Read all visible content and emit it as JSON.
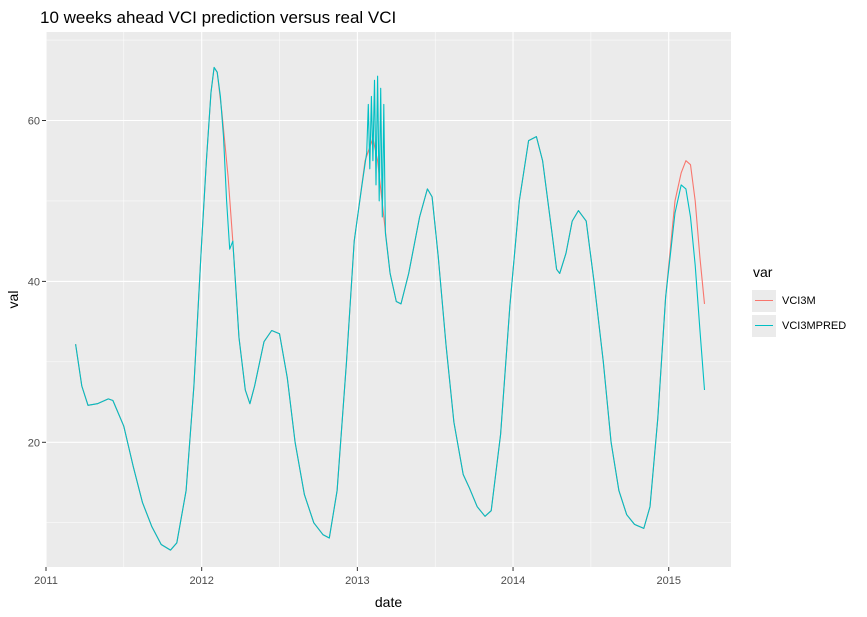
{
  "chart_data": {
    "type": "line",
    "title": "10 weeks ahead VCI prediction versus real VCI",
    "xlabel": "date",
    "ylabel": "val",
    "xlim": [
      2011.0,
      2015.4
    ],
    "ylim": [
      4.5,
      71
    ],
    "x_ticks": [
      {
        "v": 2011,
        "label": "2011"
      },
      {
        "v": 2012,
        "label": "2012"
      },
      {
        "v": 2013,
        "label": "2013"
      },
      {
        "v": 2014,
        "label": "2014"
      },
      {
        "v": 2015,
        "label": "2015"
      }
    ],
    "y_ticks": [
      {
        "v": 20,
        "label": "20"
      },
      {
        "v": 40,
        "label": "40"
      },
      {
        "v": 60,
        "label": "60"
      }
    ],
    "grid": true,
    "legend": {
      "title": "var",
      "position": "right"
    },
    "series": [
      {
        "name": "VCI3M",
        "color": "#F8766D",
        "points": [
          [
            2011.19,
            32.2
          ],
          [
            2011.23,
            27.0
          ],
          [
            2011.27,
            24.6
          ],
          [
            2011.33,
            24.8
          ],
          [
            2011.4,
            25.4
          ],
          [
            2011.43,
            25.2
          ],
          [
            2011.5,
            22.0
          ],
          [
            2011.56,
            17.0
          ],
          [
            2011.62,
            12.5
          ],
          [
            2011.68,
            9.5
          ],
          [
            2011.74,
            7.3
          ],
          [
            2011.8,
            6.6
          ],
          [
            2011.84,
            7.5
          ],
          [
            2011.9,
            14.0
          ],
          [
            2011.95,
            27.0
          ],
          [
            2012.0,
            45.0
          ],
          [
            2012.03,
            55.0
          ],
          [
            2012.06,
            63.5
          ],
          [
            2012.08,
            66.6
          ],
          [
            2012.1,
            66.0
          ],
          [
            2012.13,
            61.0
          ],
          [
            2012.17,
            53.0
          ],
          [
            2012.2,
            45.0
          ],
          [
            2012.24,
            33.0
          ],
          [
            2012.28,
            26.5
          ],
          [
            2012.31,
            24.8
          ],
          [
            2012.34,
            27.0
          ],
          [
            2012.4,
            32.5
          ],
          [
            2012.45,
            33.9
          ],
          [
            2012.5,
            33.5
          ],
          [
            2012.55,
            28.0
          ],
          [
            2012.6,
            20.0
          ],
          [
            2012.66,
            13.5
          ],
          [
            2012.72,
            10.0
          ],
          [
            2012.78,
            8.5
          ],
          [
            2012.82,
            8.1
          ],
          [
            2012.87,
            14.0
          ],
          [
            2012.93,
            30.0
          ],
          [
            2012.98,
            45.0
          ],
          [
            2013.05,
            55.0
          ],
          [
            2013.1,
            57.8
          ],
          [
            2013.13,
            55.0
          ],
          [
            2013.17,
            48.0
          ],
          [
            2013.21,
            41.0
          ],
          [
            2013.25,
            37.5
          ],
          [
            2013.28,
            37.2
          ],
          [
            2013.33,
            41.0
          ],
          [
            2013.4,
            48.0
          ],
          [
            2013.45,
            51.5
          ],
          [
            2013.48,
            50.5
          ],
          [
            2013.52,
            43.0
          ],
          [
            2013.57,
            32.0
          ],
          [
            2013.62,
            22.5
          ],
          [
            2013.68,
            16.0
          ],
          [
            2013.72,
            14.3
          ],
          [
            2013.77,
            12.0
          ],
          [
            2013.82,
            10.8
          ],
          [
            2013.86,
            11.5
          ],
          [
            2013.92,
            21.0
          ],
          [
            2013.98,
            37.0
          ],
          [
            2014.04,
            50.0
          ],
          [
            2014.1,
            57.5
          ],
          [
            2014.15,
            58.0
          ],
          [
            2014.19,
            55.0
          ],
          [
            2014.25,
            46.0
          ],
          [
            2014.28,
            41.5
          ],
          [
            2014.3,
            41.0
          ],
          [
            2014.34,
            43.5
          ],
          [
            2014.38,
            47.5
          ],
          [
            2014.42,
            48.8
          ],
          [
            2014.47,
            47.5
          ],
          [
            2014.52,
            40.0
          ],
          [
            2014.58,
            30.0
          ],
          [
            2014.63,
            20.0
          ],
          [
            2014.68,
            14.0
          ],
          [
            2014.73,
            11.0
          ],
          [
            2014.78,
            9.8
          ],
          [
            2014.84,
            9.3
          ],
          [
            2014.88,
            12.0
          ],
          [
            2014.93,
            23.0
          ],
          [
            2014.98,
            38.0
          ],
          [
            2015.04,
            50.0
          ],
          [
            2015.08,
            53.5
          ],
          [
            2015.11,
            55.0
          ],
          [
            2015.14,
            54.5
          ],
          [
            2015.17,
            50.0
          ],
          [
            2015.2,
            43.0
          ],
          [
            2015.23,
            37.2
          ]
        ]
      },
      {
        "name": "VCI3MPRED",
        "color": "#00BFC4",
        "points": [
          [
            2011.19,
            32.2
          ],
          [
            2011.23,
            27.0
          ],
          [
            2011.27,
            24.6
          ],
          [
            2011.33,
            24.8
          ],
          [
            2011.4,
            25.4
          ],
          [
            2011.43,
            25.2
          ],
          [
            2011.5,
            22.0
          ],
          [
            2011.56,
            17.0
          ],
          [
            2011.62,
            12.5
          ],
          [
            2011.68,
            9.5
          ],
          [
            2011.74,
            7.3
          ],
          [
            2011.8,
            6.6
          ],
          [
            2011.84,
            7.5
          ],
          [
            2011.9,
            14.0
          ],
          [
            2011.95,
            27.0
          ],
          [
            2012.0,
            45.0
          ],
          [
            2012.03,
            55.0
          ],
          [
            2012.06,
            63.5
          ],
          [
            2012.08,
            66.6
          ],
          [
            2012.1,
            66.0
          ],
          [
            2012.12,
            63.0
          ],
          [
            2012.14,
            58.0
          ],
          [
            2012.16,
            50.0
          ],
          [
            2012.18,
            44.0
          ],
          [
            2012.2,
            45.0
          ],
          [
            2012.24,
            33.0
          ],
          [
            2012.28,
            26.5
          ],
          [
            2012.31,
            24.8
          ],
          [
            2012.34,
            27.0
          ],
          [
            2012.4,
            32.5
          ],
          [
            2012.45,
            33.9
          ],
          [
            2012.5,
            33.5
          ],
          [
            2012.55,
            28.0
          ],
          [
            2012.6,
            20.0
          ],
          [
            2012.66,
            13.5
          ],
          [
            2012.72,
            10.0
          ],
          [
            2012.78,
            8.5
          ],
          [
            2012.82,
            8.1
          ],
          [
            2012.87,
            14.0
          ],
          [
            2012.93,
            30.0
          ],
          [
            2012.98,
            45.0
          ],
          [
            2013.03,
            52.0
          ],
          [
            2013.06,
            56.0
          ],
          [
            2013.07,
            62.0
          ],
          [
            2013.08,
            54.0
          ],
          [
            2013.09,
            63.0
          ],
          [
            2013.1,
            55.0
          ],
          [
            2013.11,
            65.0
          ],
          [
            2013.12,
            52.0
          ],
          [
            2013.13,
            65.5
          ],
          [
            2013.14,
            50.0
          ],
          [
            2013.15,
            64.0
          ],
          [
            2013.16,
            48.0
          ],
          [
            2013.17,
            62.0
          ],
          [
            2013.18,
            46.0
          ],
          [
            2013.21,
            41.0
          ],
          [
            2013.25,
            37.5
          ],
          [
            2013.28,
            37.2
          ],
          [
            2013.33,
            41.0
          ],
          [
            2013.4,
            48.0
          ],
          [
            2013.45,
            51.5
          ],
          [
            2013.48,
            50.5
          ],
          [
            2013.52,
            43.0
          ],
          [
            2013.57,
            32.0
          ],
          [
            2013.62,
            22.5
          ],
          [
            2013.68,
            16.0
          ],
          [
            2013.72,
            14.3
          ],
          [
            2013.77,
            12.0
          ],
          [
            2013.82,
            10.8
          ],
          [
            2013.86,
            11.5
          ],
          [
            2013.92,
            21.0
          ],
          [
            2013.98,
            37.0
          ],
          [
            2014.04,
            50.0
          ],
          [
            2014.1,
            57.5
          ],
          [
            2014.15,
            58.0
          ],
          [
            2014.19,
            55.0
          ],
          [
            2014.25,
            46.0
          ],
          [
            2014.28,
            41.5
          ],
          [
            2014.3,
            41.0
          ],
          [
            2014.34,
            43.5
          ],
          [
            2014.38,
            47.5
          ],
          [
            2014.42,
            48.8
          ],
          [
            2014.47,
            47.5
          ],
          [
            2014.52,
            40.0
          ],
          [
            2014.58,
            30.0
          ],
          [
            2014.63,
            20.0
          ],
          [
            2014.68,
            14.0
          ],
          [
            2014.73,
            11.0
          ],
          [
            2014.78,
            9.8
          ],
          [
            2014.84,
            9.3
          ],
          [
            2014.88,
            12.0
          ],
          [
            2014.93,
            23.0
          ],
          [
            2014.98,
            38.0
          ],
          [
            2015.04,
            48.5
          ],
          [
            2015.08,
            52.0
          ],
          [
            2015.11,
            51.5
          ],
          [
            2015.14,
            48.0
          ],
          [
            2015.17,
            42.0
          ],
          [
            2015.2,
            34.0
          ],
          [
            2015.23,
            26.5
          ]
        ]
      }
    ]
  }
}
